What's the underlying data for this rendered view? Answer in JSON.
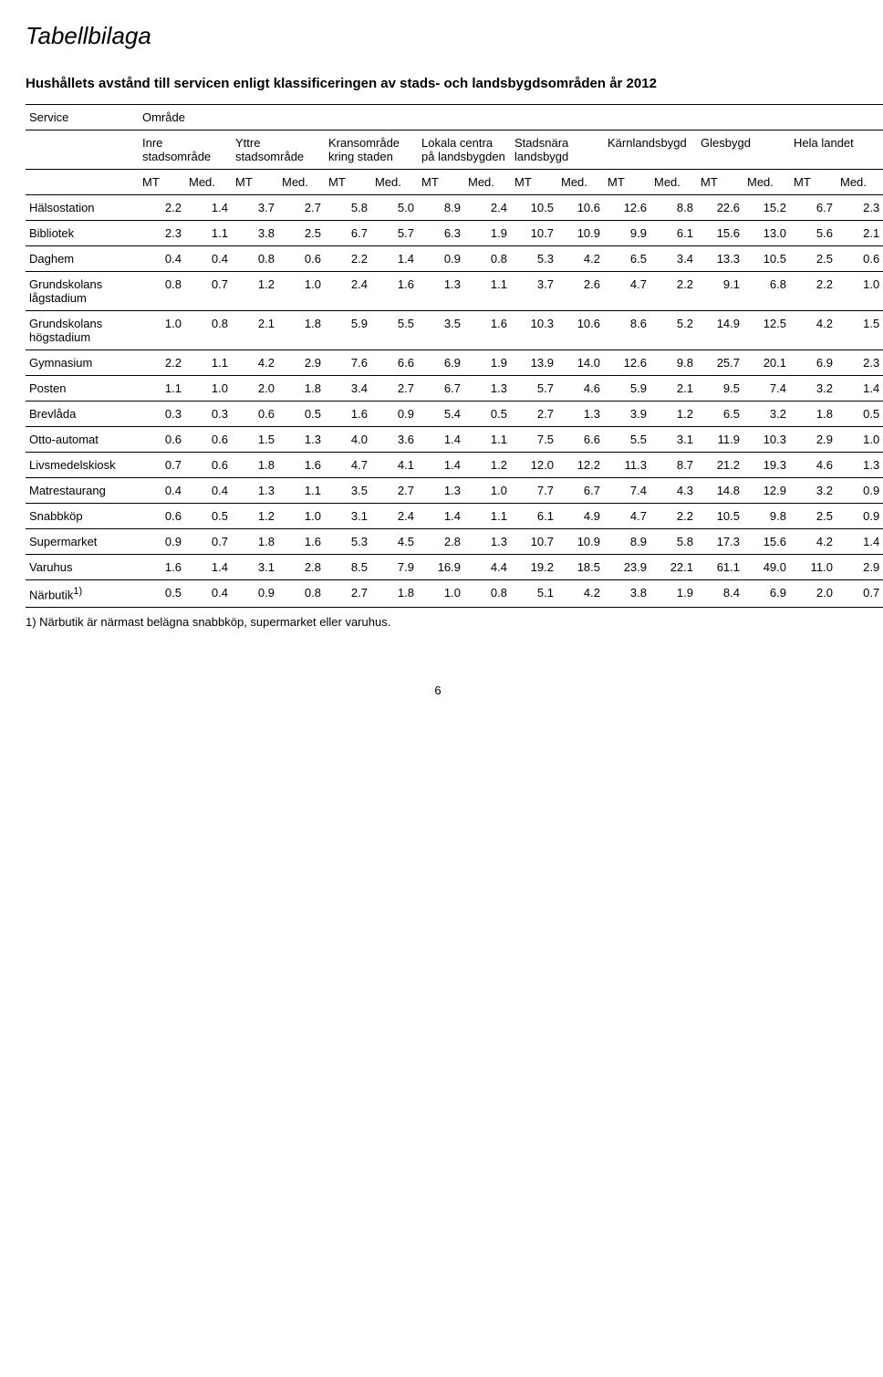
{
  "page": {
    "title": "Tabellbilaga",
    "table_title": "Hushållets avstånd till servicen enligt klassificeringen av stads- och landsbygdsområden år 2012",
    "footnote": "1) Närbutik är närmast belägna snabbköp, supermarket eller varuhus.",
    "page_number": "6"
  },
  "headers": {
    "service": "Service",
    "area": "Område",
    "areas": [
      "Inre stadsområde",
      "Yttre stadsområde",
      "Kransområde kring staden",
      "Lokala centra på landsbygden",
      "Stadsnära landsbygd",
      "Kärnlandsbygd",
      "Glesbygd",
      "Hela landet"
    ],
    "mt": "MT",
    "med": "Med."
  },
  "rows": [
    {
      "label": "Hälsostation",
      "v": [
        "2.2",
        "1.4",
        "3.7",
        "2.7",
        "5.8",
        "5.0",
        "8.9",
        "2.4",
        "10.5",
        "10.6",
        "12.6",
        "8.8",
        "22.6",
        "15.2",
        "6.7",
        "2.3"
      ]
    },
    {
      "label": "Bibliotek",
      "v": [
        "2.3",
        "1.1",
        "3.8",
        "2.5",
        "6.7",
        "5.7",
        "6.3",
        "1.9",
        "10.7",
        "10.9",
        "9.9",
        "6.1",
        "15.6",
        "13.0",
        "5.6",
        "2.1"
      ]
    },
    {
      "label": "Daghem",
      "v": [
        "0.4",
        "0.4",
        "0.8",
        "0.6",
        "2.2",
        "1.4",
        "0.9",
        "0.8",
        "5.3",
        "4.2",
        "6.5",
        "3.4",
        "13.3",
        "10.5",
        "2.5",
        "0.6"
      ]
    },
    {
      "label": "Grundskolans lågstadium",
      "v": [
        "0.8",
        "0.7",
        "1.2",
        "1.0",
        "2.4",
        "1.6",
        "1.3",
        "1.1",
        "3.7",
        "2.6",
        "4.7",
        "2.2",
        "9.1",
        "6.8",
        "2.2",
        "1.0"
      ]
    },
    {
      "label": "Grundskolans högstadium",
      "v": [
        "1.0",
        "0.8",
        "2.1",
        "1.8",
        "5.9",
        "5.5",
        "3.5",
        "1.6",
        "10.3",
        "10.6",
        "8.6",
        "5.2",
        "14.9",
        "12.5",
        "4.2",
        "1.5"
      ]
    },
    {
      "label": "Gymnasium",
      "v": [
        "2.2",
        "1.1",
        "4.2",
        "2.9",
        "7.6",
        "6.6",
        "6.9",
        "1.9",
        "13.9",
        "14.0",
        "12.6",
        "9.8",
        "25.7",
        "20.1",
        "6.9",
        "2.3"
      ]
    },
    {
      "label": "Posten",
      "v": [
        "1.1",
        "1.0",
        "2.0",
        "1.8",
        "3.4",
        "2.7",
        "6.7",
        "1.3",
        "5.7",
        "4.6",
        "5.9",
        "2.1",
        "9.5",
        "7.4",
        "3.2",
        "1.4"
      ]
    },
    {
      "label": "Brevlåda",
      "v": [
        "0.3",
        "0.3",
        "0.6",
        "0.5",
        "1.6",
        "0.9",
        "5.4",
        "0.5",
        "2.7",
        "1.3",
        "3.9",
        "1.2",
        "6.5",
        "3.2",
        "1.8",
        "0.5"
      ]
    },
    {
      "label": "Otto-automat",
      "v": [
        "0.6",
        "0.6",
        "1.5",
        "1.3",
        "4.0",
        "3.6",
        "1.4",
        "1.1",
        "7.5",
        "6.6",
        "5.5",
        "3.1",
        "11.9",
        "10.3",
        "2.9",
        "1.0"
      ]
    },
    {
      "label": "Livsmedelskiosk",
      "v": [
        "0.7",
        "0.6",
        "1.8",
        "1.6",
        "4.7",
        "4.1",
        "1.4",
        "1.2",
        "12.0",
        "12.2",
        "11.3",
        "8.7",
        "21.2",
        "19.3",
        "4.6",
        "1.3"
      ]
    },
    {
      "label": "Matrestaurang",
      "v": [
        "0.4",
        "0.4",
        "1.3",
        "1.1",
        "3.5",
        "2.7",
        "1.3",
        "1.0",
        "7.7",
        "6.7",
        "7.4",
        "4.3",
        "14.8",
        "12.9",
        "3.2",
        "0.9"
      ]
    },
    {
      "label": "Snabbköp",
      "v": [
        "0.6",
        "0.5",
        "1.2",
        "1.0",
        "3.1",
        "2.4",
        "1.4",
        "1.1",
        "6.1",
        "4.9",
        "4.7",
        "2.2",
        "10.5",
        "9.8",
        "2.5",
        "0.9"
      ]
    },
    {
      "label": "Supermarket",
      "v": [
        "0.9",
        "0.7",
        "1.8",
        "1.6",
        "5.3",
        "4.5",
        "2.8",
        "1.3",
        "10.7",
        "10.9",
        "8.9",
        "5.8",
        "17.3",
        "15.6",
        "4.2",
        "1.4"
      ]
    },
    {
      "label": "Varuhus",
      "v": [
        "1.6",
        "1.4",
        "3.1",
        "2.8",
        "8.5",
        "7.9",
        "16.9",
        "4.4",
        "19.2",
        "18.5",
        "23.9",
        "22.1",
        "61.1",
        "49.0",
        "11.0",
        "2.9"
      ]
    },
    {
      "label_html": "Närbutik<sup>1)</sup>",
      "label": "Närbutik 1)",
      "v": [
        "0.5",
        "0.4",
        "0.9",
        "0.8",
        "2.7",
        "1.8",
        "1.0",
        "0.8",
        "5.1",
        "4.2",
        "3.8",
        "1.9",
        "8.4",
        "6.9",
        "2.0",
        "0.7"
      ]
    }
  ]
}
